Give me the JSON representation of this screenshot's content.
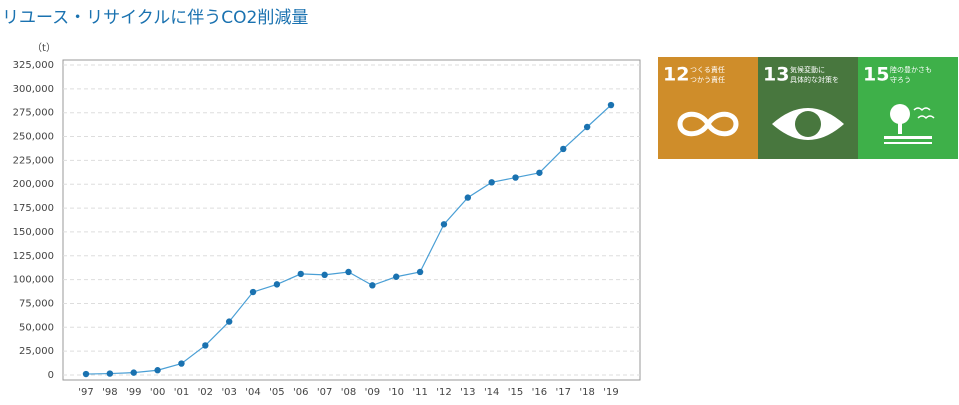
{
  "chart_data": {
    "type": "line",
    "title": "リユース・リサイクルに伴うCO2削減量",
    "y_unit": "（t）",
    "categories": [
      "'97",
      "'98",
      "'99",
      "'00",
      "'01",
      "'02",
      "'03",
      "'04",
      "'05",
      "'06",
      "'07",
      "'08",
      "'09",
      "'10",
      "'11",
      "'12",
      "'13",
      "'14",
      "'15",
      "'16",
      "'17",
      "'18",
      "'19"
    ],
    "series": [
      {
        "name": "CO2削減量",
        "color": "#1a72b0",
        "values": [
          1000,
          1500,
          2500,
          5000,
          12000,
          31000,
          56000,
          87000,
          95000,
          106000,
          105000,
          108000,
          94000,
          103000,
          108000,
          158000,
          186000,
          202000,
          207000,
          212000,
          237000,
          260000,
          283000
        ]
      }
    ],
    "ylim": [
      0,
      325000
    ],
    "yticks": [
      0,
      {
        "value": 25000,
        "label": "25,000"
      },
      {
        "value": 50000,
        "label": "50,000"
      },
      {
        "value": 75000,
        "label": "75,000"
      },
      {
        "value": 100000,
        "label": "100,000"
      },
      {
        "value": 125000,
        "label": "125,000"
      },
      {
        "value": 150000,
        "label": "150,000"
      },
      {
        "value": 175000,
        "label": "175,000"
      },
      {
        "value": 200000,
        "label": "200,000"
      },
      {
        "value": 225000,
        "label": "225,000"
      },
      {
        "value": 250000,
        "label": "250,000"
      },
      {
        "value": 275000,
        "label": "275,000"
      },
      {
        "value": 300000,
        "label": "300,000"
      },
      {
        "value": 325000,
        "label": "325,000"
      }
    ],
    "grid": true
  },
  "sdgs": [
    {
      "number": "12",
      "label_1": "つくる責任",
      "label_2": "つかう責任",
      "color": "#cf8d2a"
    },
    {
      "number": "13",
      "label_1": "気候変動に",
      "label_2": "具体的な対策を",
      "color": "#48773e"
    },
    {
      "number": "15",
      "label_1": "陸の豊かさも",
      "label_2": "守ろう",
      "color": "#3eb049"
    }
  ]
}
